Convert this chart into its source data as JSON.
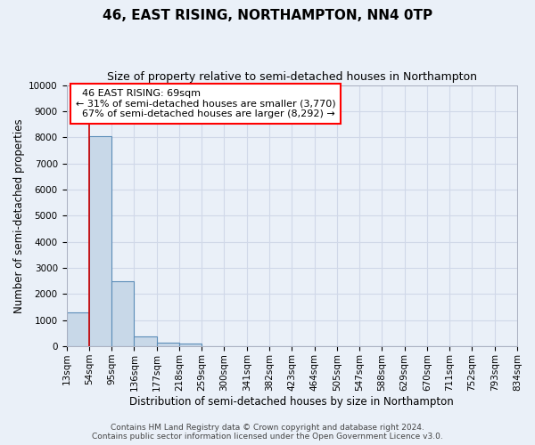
{
  "title": "46, EAST RISING, NORTHAMPTON, NN4 0TP",
  "subtitle": "Size of property relative to semi-detached houses in Northampton",
  "xlabel": "Distribution of semi-detached houses by size in Northampton",
  "ylabel": "Number of semi-detached properties",
  "footer_line1": "Contains HM Land Registry data © Crown copyright and database right 2024.",
  "footer_line2": "Contains public sector information licensed under the Open Government Licence v3.0.",
  "bin_labels": [
    "13sqm",
    "54sqm",
    "95sqm",
    "136sqm",
    "177sqm",
    "218sqm",
    "259sqm",
    "300sqm",
    "341sqm",
    "382sqm",
    "423sqm",
    "464sqm",
    "505sqm",
    "547sqm",
    "588sqm",
    "629sqm",
    "670sqm",
    "711sqm",
    "752sqm",
    "793sqm",
    "834sqm"
  ],
  "bar_values": [
    1300,
    8050,
    2500,
    380,
    155,
    120,
    0,
    0,
    0,
    0,
    0,
    0,
    0,
    0,
    0,
    0,
    0,
    0,
    0,
    0
  ],
  "bar_color": "#c8d8e8",
  "bar_edge_color": "#5b8db8",
  "annotation_line1": "  46 EAST RISING: 69sqm",
  "annotation_line2": "← 31% of semi-detached houses are smaller (3,770)",
  "annotation_line3": "  67% of semi-detached houses are larger (8,292) →",
  "annotation_box_facecolor": "white",
  "annotation_box_edgecolor": "red",
  "redline_x": 1.0,
  "ylim": [
    0,
    10000
  ],
  "yticks": [
    0,
    1000,
    2000,
    3000,
    4000,
    5000,
    6000,
    7000,
    8000,
    9000,
    10000
  ],
  "bg_color": "#eaf0f8",
  "plot_bg_color": "#eaf0f8",
  "grid_color": "#d0d8e8",
  "title_fontsize": 11,
  "subtitle_fontsize": 9,
  "axis_label_fontsize": 8.5,
  "tick_fontsize": 7.5,
  "annotation_fontsize": 8,
  "footer_fontsize": 6.5
}
